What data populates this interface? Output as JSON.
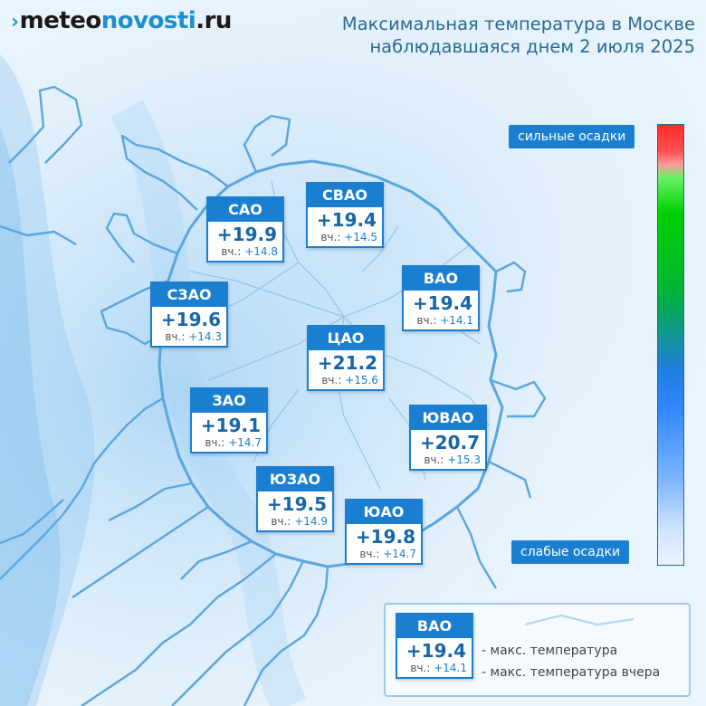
{
  "header": {
    "logo": {
      "part1": "meteo",
      "part2": "novosti",
      "part3": ".ru",
      "icon": "chevron-mark-icon"
    },
    "title_line1": "Максимальная температура в Москве",
    "title_line2": "наблюдавшаяся днем 2 июля 2025"
  },
  "districts": [
    {
      "id": "sao",
      "name": "САО",
      "temp": "+19.9",
      "prev_label": "вч.:",
      "prev": "+14.8"
    },
    {
      "id": "svao",
      "name": "СВАО",
      "temp": "+19.4",
      "prev_label": "вч.:",
      "prev": "+14.5"
    },
    {
      "id": "szao",
      "name": "СЗАО",
      "temp": "+19.6",
      "prev_label": "вч.:",
      "prev": "+14.3"
    },
    {
      "id": "vao",
      "name": "ВАО",
      "temp": "+19.4",
      "prev_label": "вч.:",
      "prev": "+14.1"
    },
    {
      "id": "cao",
      "name": "ЦАО",
      "temp": "+21.2",
      "prev_label": "вч.:",
      "prev": "+15.6"
    },
    {
      "id": "zao",
      "name": "ЗАО",
      "temp": "+19.1",
      "prev_label": "вч.:",
      "prev": "+14.7"
    },
    {
      "id": "yuvao",
      "name": "ЮВАО",
      "temp": "+20.7",
      "prev_label": "вч.:",
      "prev": "+15.3"
    },
    {
      "id": "yuzao",
      "name": "ЮЗАО",
      "temp": "+19.5",
      "prev_label": "вч.:",
      "prev": "+14.9"
    },
    {
      "id": "yuao",
      "name": "ЮАО",
      "temp": "+19.8",
      "prev_label": "вч.:",
      "prev": "+14.7"
    }
  ],
  "scale": {
    "top_label": "сильные осадки",
    "bottom_label": "слабые осадки",
    "colors": [
      "#ff2a2a",
      "#00d000",
      "#2f86ff",
      "#eaf4ff"
    ]
  },
  "legend": {
    "sample_name": "ВАО",
    "sample_temp": "+19.4",
    "sample_prev_label": "вч.:",
    "sample_prev": "+14.1",
    "max_temp_text": "- макс. температура",
    "prev_temp_text": "- макс. температура вчера"
  },
  "colors": {
    "accent": "#1a7fd0",
    "title": "#2a6a92",
    "boundary": "#5aa6df"
  }
}
